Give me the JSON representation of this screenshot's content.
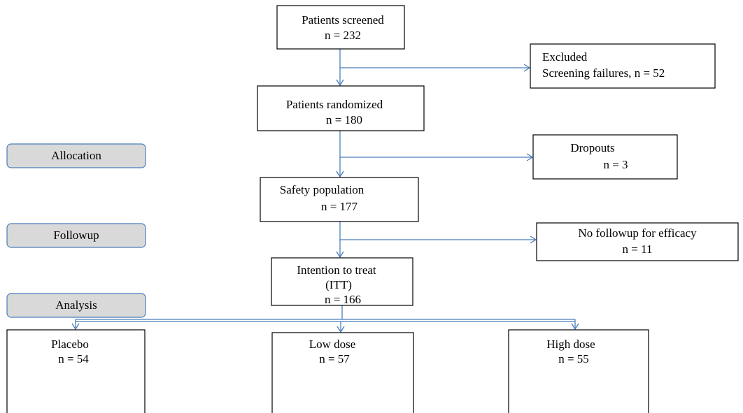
{
  "nodes": [
    {
      "lines": [
        "Patients screened",
        "n = 232"
      ]
    },
    {
      "lines": [
        "Excluded",
        "Screening failures, n = 52"
      ]
    },
    {
      "lines": [
        "Patients randomized",
        "n = 180"
      ]
    },
    {
      "lines": [
        "Dropouts",
        "n = 3"
      ]
    },
    {
      "lines": [
        "Safety population",
        "n = 177"
      ]
    },
    {
      "lines": [
        "No followup for efficacy",
        "n = 11"
      ]
    },
    {
      "lines": [
        "Intention to treat",
        "(ITT)",
        "n = 166"
      ]
    },
    {
      "lines": [
        "Placebo",
        "n = 54"
      ]
    },
    {
      "lines": [
        "Low dose",
        "n = 57"
      ]
    },
    {
      "lines": [
        "High dose",
        "n = 55"
      ]
    }
  ],
  "stages": [
    "Allocation",
    "Followup",
    "Analysis"
  ]
}
